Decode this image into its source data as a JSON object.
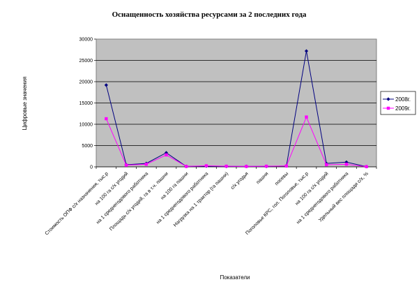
{
  "chart_data": {
    "type": "line",
    "title": "Оснащенность хозяйства ресурсами за 2 последних года",
    "xlabel": "Показатели",
    "ylabel": "Цифровые значения",
    "ylim": [
      0,
      30000
    ],
    "yticks": [
      0,
      5000,
      10000,
      15000,
      20000,
      25000,
      30000
    ],
    "grid": true,
    "legend_position": "right",
    "categories": [
      "Стоимость ОПФ с/х назначения, тыс.р",
      "на 100 га с/х угодий",
      "на 1 среднегодового работника",
      "Площадь с/х угодий, га в т.ч. пашни",
      "на 100 га пашни",
      "на 1 среднегодового работника",
      "Нагрузка на 1 трактор (га пашни)",
      "с/х угодья",
      "пашня",
      "посевы",
      "Поголовье КРС, гол. Поголовье, тыс.р",
      "на 100 га с/х угодий",
      "на 1 среднегодового работника",
      "Удельный вес площади с/х, %"
    ],
    "series": [
      {
        "name": "2008г.",
        "color": "#000080",
        "values": [
          19200,
          500,
          800,
          3300,
          100,
          150,
          100,
          100,
          100,
          200,
          27200,
          800,
          1100,
          50
        ]
      },
      {
        "name": "2009г.",
        "color": "#ff00ff",
        "values": [
          11300,
          400,
          600,
          2800,
          100,
          250,
          150,
          100,
          150,
          200,
          11700,
          500,
          600,
          50
        ]
      }
    ]
  }
}
